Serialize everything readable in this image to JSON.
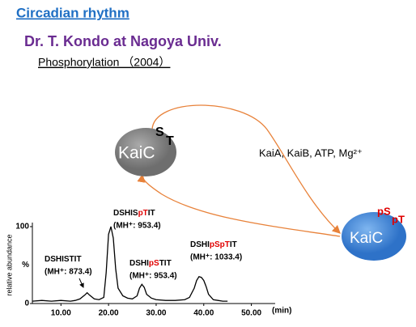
{
  "slide": {
    "title": "Circadian rhythm",
    "author": "Dr. T. Kondo at Nagoya Univ.",
    "topic": "Phosphorylation （2004）"
  },
  "diagram": {
    "kaic_plain": {
      "label": "KaiC",
      "sup": "S",
      "sub": "T"
    },
    "condition": "KaiA, KaiB, ATP, Mg²⁺",
    "kaic_phos": {
      "label": "KaiC",
      "sup1": "pS",
      "sup2": "pT"
    }
  },
  "chart_data": {
    "type": "line",
    "ylabel": "relative abundance",
    "y_unit": "%",
    "x_unit": "(min)",
    "x": [
      4,
      6,
      8,
      10,
      12,
      13,
      14,
      15,
      15.5,
      16,
      17,
      18,
      19,
      19.5,
      20,
      20.5,
      21,
      21.5,
      22,
      23,
      24,
      25,
      26,
      26.5,
      27,
      27.5,
      28,
      29,
      30,
      32,
      34,
      36,
      37,
      38,
      38.5,
      39,
      39.5,
      40,
      40.5,
      41,
      42,
      43,
      44,
      45
    ],
    "series": [
      {
        "color": "#000000",
        "values": [
          3,
          4,
          3,
          4,
          3,
          4,
          6,
          11,
          14,
          11,
          6,
          5,
          8,
          40,
          90,
          100,
          85,
          45,
          20,
          10,
          7,
          6,
          10,
          20,
          25,
          21,
          12,
          7,
          5,
          4,
          4,
          5,
          8,
          20,
          30,
          35,
          34,
          30,
          22,
          12,
          5,
          4,
          3,
          3
        ]
      }
    ],
    "xlim": [
      4,
      55
    ],
    "ylim": [
      0,
      100
    ],
    "xticks": [
      {
        "value": 10,
        "label": "10.00"
      },
      {
        "value": 20,
        "label": "20.00"
      },
      {
        "value": 30,
        "label": "30.00"
      },
      {
        "value": 40,
        "label": "40.00"
      },
      {
        "value": 50,
        "label": "50.00"
      }
    ],
    "yticks": [
      0,
      100
    ],
    "annotations": [
      {
        "parts": [
          "DSHISTIT"
        ],
        "mass": "(MH⁺: 873.4)"
      },
      {
        "parts": [
          "DSHIS",
          "pT",
          "IT"
        ],
        "mass": "(MH⁺: 953.4)"
      },
      {
        "parts": [
          "DSHI",
          "pS",
          "TIT"
        ],
        "mass": "(MH⁺: 953.4)"
      },
      {
        "parts": [
          "DSHI",
          "pSpT",
          "IT"
        ],
        "mass": "(MH⁺: 1033.4)"
      }
    ]
  }
}
